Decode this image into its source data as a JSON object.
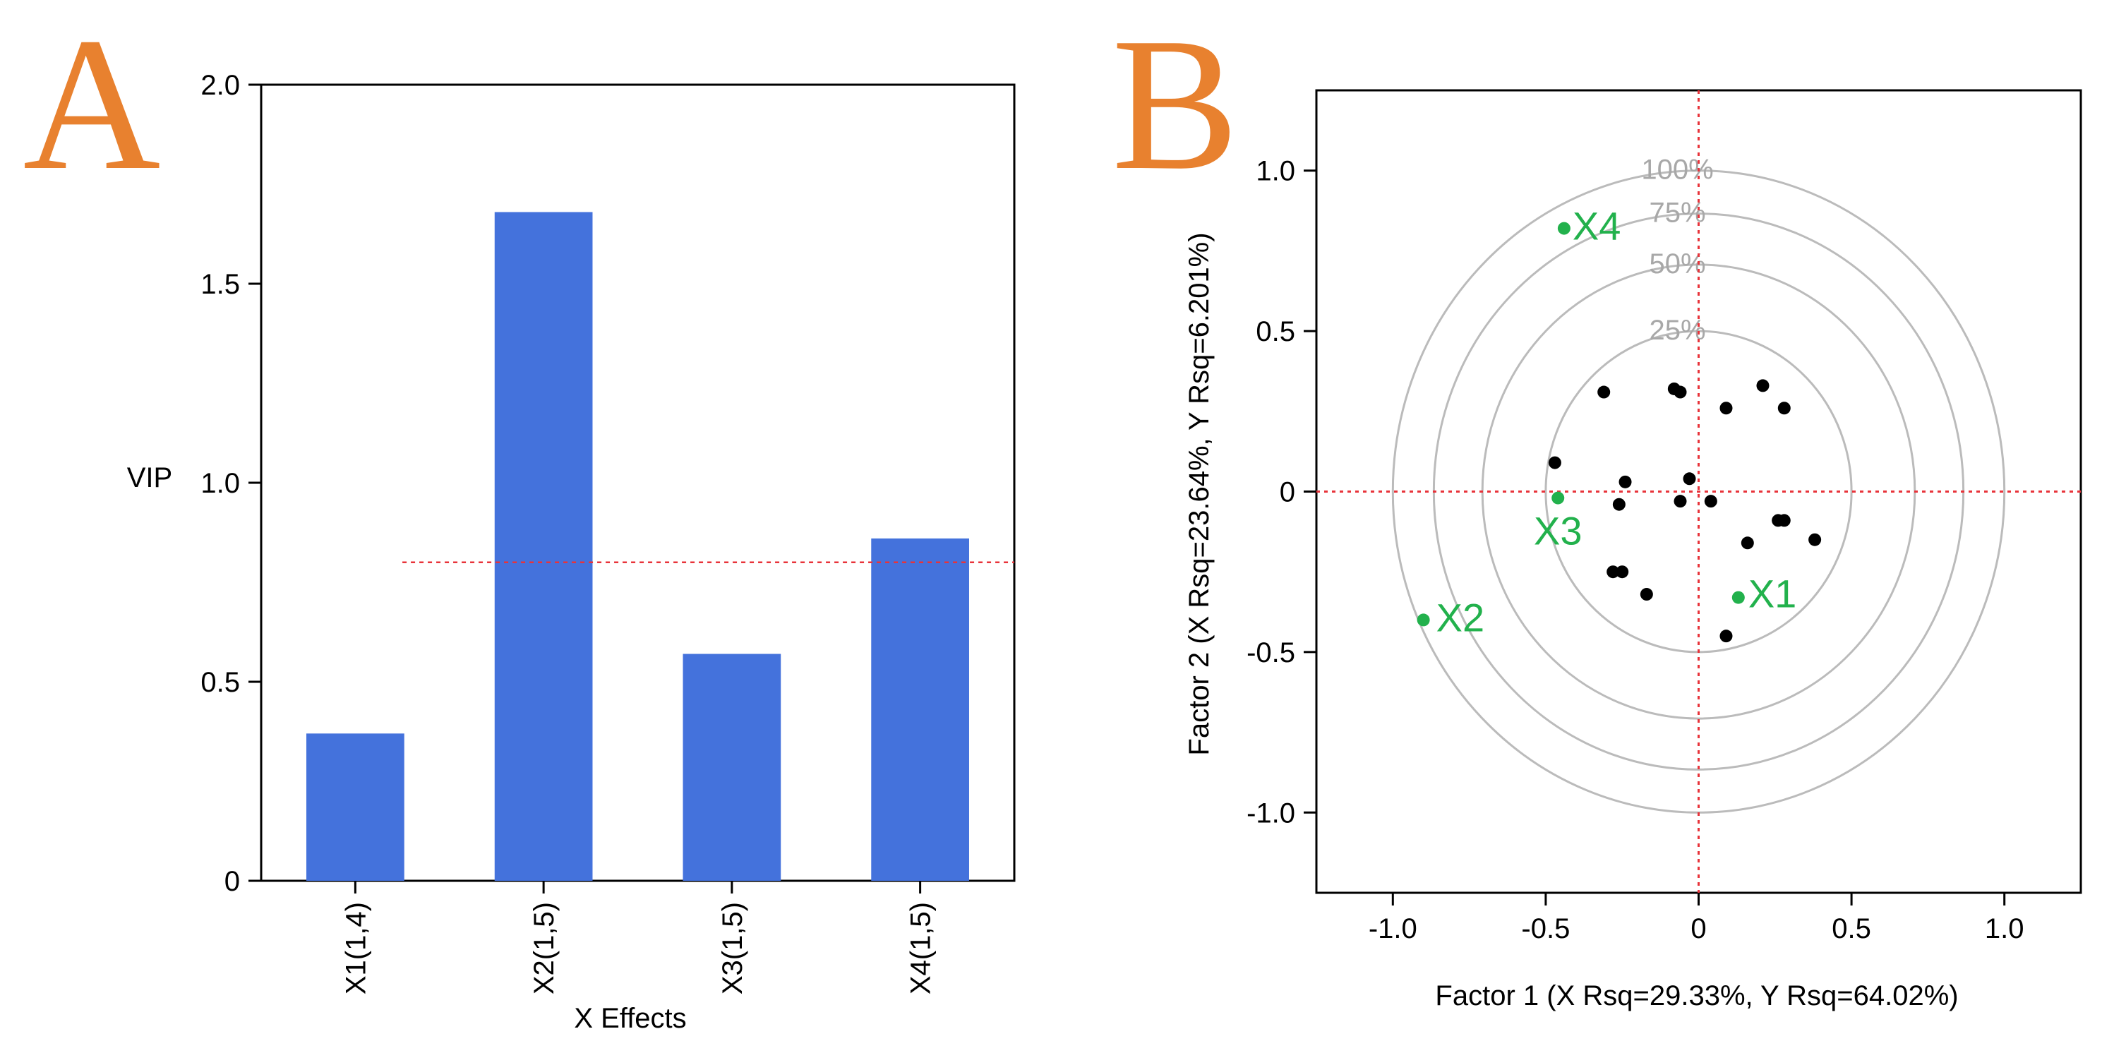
{
  "panels": [
    {
      "letter": "A",
      "color": "#E8812F"
    },
    {
      "letter": "B",
      "color": "#E8812F"
    }
  ],
  "chart_data": [
    {
      "type": "bar",
      "panel": "A",
      "categories": [
        "X1(1,4)",
        "X2(1,5)",
        "X3(1,5)",
        "X4(1,5)"
      ],
      "values": [
        0.37,
        1.68,
        0.57,
        0.86
      ],
      "bar_color": "#4472DC",
      "title": "",
      "xlabel": "X Effects",
      "ylabel": "VIP",
      "ylim": [
        0,
        2.0
      ],
      "yticks": [
        0,
        0.5,
        1.0,
        1.5,
        2.0
      ],
      "ytick_labels": [
        "0",
        "0.5",
        "1.0",
        "1.5",
        "2.0"
      ],
      "threshold": {
        "value": 0.8,
        "color": "#E8333A",
        "style": "dashed",
        "x_start_category": 0.75
      }
    },
    {
      "type": "scatter",
      "panel": "B",
      "title": "",
      "xlabel": "Factor 1 (X Rsq=29.33%, Y Rsq=64.02%)",
      "ylabel": "Factor 2 (X Rsq=23.64%, Y Rsq=6.201%)",
      "xlim": [
        -1.25,
        1.25
      ],
      "ylim": [
        -1.25,
        1.25
      ],
      "xticks": [
        -1.0,
        -0.5,
        0,
        0.5,
        1.0
      ],
      "xtick_labels": [
        "-1.0",
        "-0.5",
        "0",
        "0.5",
        "1.0"
      ],
      "yticks": [
        -1.0,
        -0.5,
        0,
        0.5,
        1.0
      ],
      "ytick_labels": [
        "-1.0",
        "-0.5",
        "0",
        "0.5",
        "1.0"
      ],
      "circles": [
        {
          "label": "25%",
          "radius": 0.5
        },
        {
          "label": "50%",
          "radius": 0.7071
        },
        {
          "label": "75%",
          "radius": 0.866
        },
        {
          "label": "100%",
          "radius": 1.0
        }
      ],
      "circle_color": "#BBBBBB",
      "zero_line_color": "#E8333A",
      "sample_color": "#000000",
      "variable_color": "#22B14C",
      "variables": [
        {
          "name": "X1",
          "x": 0.13,
          "y": -0.33
        },
        {
          "name": "X2",
          "x": -0.9,
          "y": -0.4
        },
        {
          "name": "X3",
          "x": -0.46,
          "y": -0.02
        },
        {
          "name": "X4",
          "x": -0.44,
          "y": 0.82
        }
      ],
      "samples": [
        {
          "x": -0.31,
          "y": 0.31
        },
        {
          "x": -0.08,
          "y": 0.32
        },
        {
          "x": -0.06,
          "y": 0.31
        },
        {
          "x": 0.09,
          "y": 0.26
        },
        {
          "x": 0.21,
          "y": 0.33
        },
        {
          "x": 0.28,
          "y": 0.26
        },
        {
          "x": -0.47,
          "y": 0.09
        },
        {
          "x": -0.24,
          "y": 0.03
        },
        {
          "x": -0.03,
          "y": 0.04
        },
        {
          "x": -0.26,
          "y": -0.04
        },
        {
          "x": -0.06,
          "y": -0.03
        },
        {
          "x": 0.04,
          "y": -0.03
        },
        {
          "x": 0.26,
          "y": -0.09
        },
        {
          "x": 0.28,
          "y": -0.09
        },
        {
          "x": 0.16,
          "y": -0.16
        },
        {
          "x": 0.38,
          "y": -0.15
        },
        {
          "x": -0.28,
          "y": -0.25
        },
        {
          "x": -0.25,
          "y": -0.25
        },
        {
          "x": -0.17,
          "y": -0.32
        },
        {
          "x": 0.09,
          "y": -0.45
        }
      ]
    }
  ]
}
